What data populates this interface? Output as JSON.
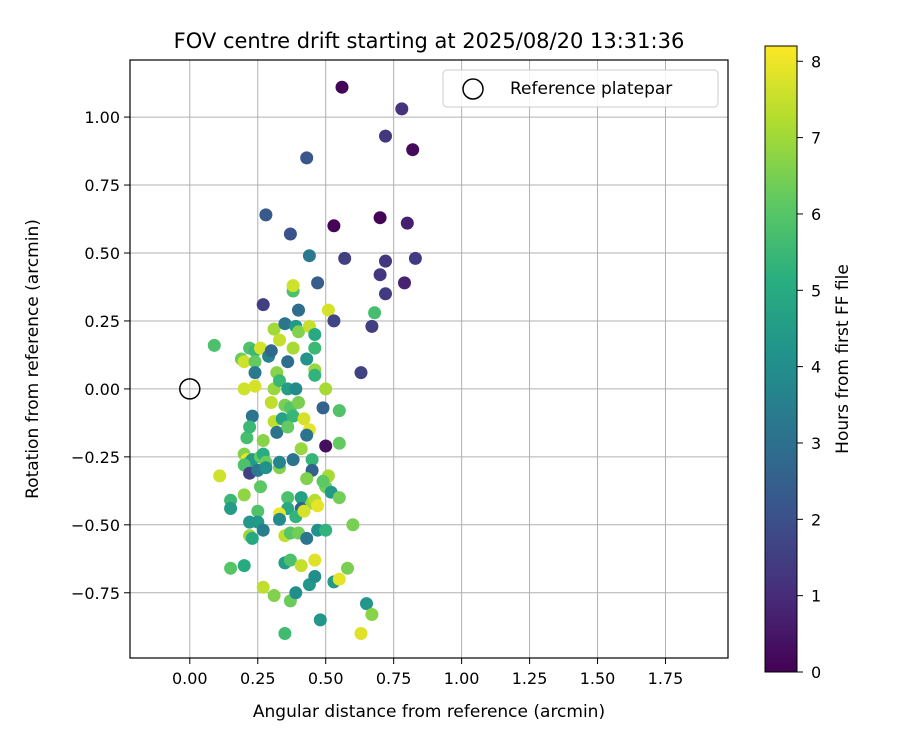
{
  "chart_data": {
    "type": "scatter",
    "title": "FOV centre drift starting at 2025/08/20 13:31:36",
    "xlabel": "Angular distance from reference (arcmin)",
    "ylabel": "Rotation from reference (arcmin)",
    "xlim": [
      -0.22,
      1.98
    ],
    "ylim": [
      -0.99,
      1.21
    ],
    "xticks": [
      0.0,
      0.25,
      0.5,
      0.75,
      1.0,
      1.25,
      1.5,
      1.75
    ],
    "xtick_labels": [
      "0.00",
      "0.25",
      "0.50",
      "0.75",
      "1.00",
      "1.25",
      "1.50",
      "1.75"
    ],
    "yticks": [
      -0.75,
      -0.5,
      -0.25,
      0.0,
      0.25,
      0.5,
      0.75,
      1.0
    ],
    "ytick_labels": [
      "−0.75",
      "−0.50",
      "−0.25",
      "0.00",
      "0.25",
      "0.50",
      "0.75",
      "1.00"
    ],
    "grid": true,
    "colormap": "viridis",
    "colorbar": {
      "label": "Hours from first FF file",
      "min": 0,
      "max": 8.2,
      "ticks": [
        0,
        1,
        2,
        3,
        4,
        5,
        6,
        7,
        8
      ],
      "tick_labels": [
        "0",
        "1",
        "2",
        "3",
        "4",
        "5",
        "6",
        "7",
        "8"
      ]
    },
    "legend": {
      "placement": "top-right",
      "entries": [
        {
          "label": "Reference platepar",
          "marker": "open-circle",
          "x": 0.0,
          "y": 0.0
        }
      ]
    },
    "series": [
      {
        "points": [
          [
            0.56,
            1.11,
            0.1
          ],
          [
            0.78,
            1.03,
            1.2
          ],
          [
            0.72,
            0.93,
            1.3
          ],
          [
            0.82,
            0.88,
            0.2
          ],
          [
            0.43,
            0.85,
            2.2
          ],
          [
            0.28,
            0.64,
            2.3
          ],
          [
            0.37,
            0.57,
            2.1
          ],
          [
            0.53,
            0.6,
            0.1
          ],
          [
            0.7,
            0.63,
            0.1
          ],
          [
            0.8,
            0.61,
            0.7
          ],
          [
            0.44,
            0.49,
            3.3
          ],
          [
            0.57,
            0.48,
            1.5
          ],
          [
            0.72,
            0.47,
            1.3
          ],
          [
            0.83,
            0.48,
            1.4
          ],
          [
            0.7,
            0.42,
            1.3
          ],
          [
            0.47,
            0.39,
            2.4
          ],
          [
            0.72,
            0.35,
            1.4
          ],
          [
            0.79,
            0.39,
            0.8
          ],
          [
            0.27,
            0.31,
            1.5
          ],
          [
            0.38,
            0.36,
            5.8
          ],
          [
            0.38,
            0.38,
            7.6
          ],
          [
            0.4,
            0.29,
            2.9
          ],
          [
            0.51,
            0.29,
            7.7
          ],
          [
            0.53,
            0.25,
            1.7
          ],
          [
            0.68,
            0.28,
            5.7
          ],
          [
            0.67,
            0.23,
            1.5
          ],
          [
            0.31,
            0.22,
            7.0
          ],
          [
            0.35,
            0.24,
            3.2
          ],
          [
            0.39,
            0.23,
            4.4
          ],
          [
            0.4,
            0.21,
            6.6
          ],
          [
            0.44,
            0.23,
            7.5
          ],
          [
            0.46,
            0.2,
            5.0
          ],
          [
            0.09,
            0.16,
            5.8
          ],
          [
            0.22,
            0.15,
            5.9
          ],
          [
            0.24,
            0.14,
            5.5
          ],
          [
            0.26,
            0.15,
            7.7
          ],
          [
            0.29,
            0.12,
            3.6
          ],
          [
            0.3,
            0.14,
            2.8
          ],
          [
            0.33,
            0.18,
            7.5
          ],
          [
            0.38,
            0.15,
            7.1
          ],
          [
            0.46,
            0.15,
            5.5
          ],
          [
            0.19,
            0.11,
            6.3
          ],
          [
            0.2,
            0.1,
            7.6
          ],
          [
            0.24,
            0.1,
            6.2
          ],
          [
            0.24,
            0.06,
            3.3
          ],
          [
            0.36,
            0.1,
            2.9
          ],
          [
            0.43,
            0.11,
            4.2
          ],
          [
            0.32,
            0.06,
            6.7
          ],
          [
            0.46,
            0.07,
            6.9
          ],
          [
            0.46,
            0.05,
            5.3
          ],
          [
            0.63,
            0.06,
            1.6
          ],
          [
            0.2,
            0.0,
            7.6
          ],
          [
            0.24,
            0.01,
            7.7
          ],
          [
            0.31,
            0.0,
            6.9
          ],
          [
            0.33,
            0.03,
            5.5
          ],
          [
            0.36,
            0.0,
            4.6
          ],
          [
            0.39,
            0.0,
            3.9
          ],
          [
            0.5,
            0.0,
            7.1
          ],
          [
            0.3,
            -0.05,
            7.4
          ],
          [
            0.35,
            -0.06,
            6.5
          ],
          [
            0.37,
            -0.07,
            6.0
          ],
          [
            0.4,
            -0.05,
            6.5
          ],
          [
            0.49,
            -0.07,
            2.6
          ],
          [
            0.55,
            -0.08,
            5.9
          ],
          [
            0.23,
            -0.1,
            3.2
          ],
          [
            0.31,
            -0.12,
            7.4
          ],
          [
            0.34,
            -0.11,
            4.7
          ],
          [
            0.38,
            -0.1,
            5.4
          ],
          [
            0.42,
            -0.11,
            7.7
          ],
          [
            0.44,
            -0.15,
            7.9
          ],
          [
            0.21,
            -0.18,
            5.7
          ],
          [
            0.22,
            -0.14,
            5.5
          ],
          [
            0.32,
            -0.16,
            3.1
          ],
          [
            0.36,
            -0.14,
            6.2
          ],
          [
            0.43,
            -0.17,
            3.1
          ],
          [
            0.5,
            -0.21,
            0.3
          ],
          [
            0.55,
            -0.2,
            6.2
          ],
          [
            0.27,
            -0.19,
            6.7
          ],
          [
            0.41,
            -0.22,
            6.9
          ],
          [
            0.2,
            -0.24,
            6.6
          ],
          [
            0.21,
            -0.26,
            7.9
          ],
          [
            0.22,
            -0.27,
            5.4
          ],
          [
            0.23,
            -0.26,
            4.4
          ],
          [
            0.26,
            -0.25,
            6.2
          ],
          [
            0.27,
            -0.24,
            5.1
          ],
          [
            0.28,
            -0.27,
            6.3
          ],
          [
            0.2,
            -0.28,
            5.8
          ],
          [
            0.22,
            -0.31,
            1.6
          ],
          [
            0.25,
            -0.3,
            3.3
          ],
          [
            0.28,
            -0.29,
            4.1
          ],
          [
            0.33,
            -0.29,
            6.6
          ],
          [
            0.33,
            -0.27,
            3.7
          ],
          [
            0.38,
            -0.26,
            3.1
          ],
          [
            0.45,
            -0.26,
            5.4
          ],
          [
            0.45,
            -0.3,
            2.6
          ],
          [
            0.5,
            -0.36,
            6.4
          ],
          [
            0.51,
            -0.32,
            7.1
          ],
          [
            0.11,
            -0.32,
            7.6
          ],
          [
            0.43,
            -0.33,
            6.6
          ],
          [
            0.49,
            -0.34,
            6.1
          ],
          [
            0.26,
            -0.36,
            6.1
          ],
          [
            0.2,
            -0.39,
            6.8
          ],
          [
            0.36,
            -0.4,
            5.8
          ],
          [
            0.36,
            -0.44,
            4.9
          ],
          [
            0.41,
            -0.4,
            4.7
          ],
          [
            0.41,
            -0.44,
            2.6
          ],
          [
            0.45,
            -0.42,
            6.9
          ],
          [
            0.46,
            -0.41,
            7.3
          ],
          [
            0.47,
            -0.43,
            7.9
          ],
          [
            0.52,
            -0.38,
            4.4
          ],
          [
            0.55,
            -0.4,
            6.4
          ],
          [
            0.15,
            -0.41,
            5.5
          ],
          [
            0.15,
            -0.44,
            4.5
          ],
          [
            0.25,
            -0.45,
            5.9
          ],
          [
            0.25,
            -0.49,
            4.4
          ],
          [
            0.33,
            -0.46,
            8.0
          ],
          [
            0.33,
            -0.48,
            3.9
          ],
          [
            0.39,
            -0.47,
            5.3
          ],
          [
            0.42,
            -0.45,
            7.7
          ],
          [
            0.22,
            -0.49,
            4.3
          ],
          [
            0.27,
            -0.52,
            3.5
          ],
          [
            0.22,
            -0.54,
            6.9
          ],
          [
            0.23,
            -0.55,
            4.9
          ],
          [
            0.35,
            -0.54,
            7.4
          ],
          [
            0.37,
            -0.53,
            6.0
          ],
          [
            0.4,
            -0.53,
            6.4
          ],
          [
            0.43,
            -0.55,
            3.2
          ],
          [
            0.47,
            -0.52,
            4.1
          ],
          [
            0.5,
            -0.52,
            5.3
          ],
          [
            0.6,
            -0.5,
            6.5
          ],
          [
            0.58,
            -0.66,
            6.5
          ],
          [
            0.15,
            -0.66,
            6.0
          ],
          [
            0.2,
            -0.65,
            5.0
          ],
          [
            0.35,
            -0.64,
            4.5
          ],
          [
            0.37,
            -0.63,
            5.8
          ],
          [
            0.41,
            -0.65,
            7.5
          ],
          [
            0.46,
            -0.63,
            7.8
          ],
          [
            0.44,
            -0.72,
            4.3
          ],
          [
            0.46,
            -0.69,
            4.0
          ],
          [
            0.53,
            -0.71,
            4.4
          ],
          [
            0.55,
            -0.7,
            7.9
          ],
          [
            0.27,
            -0.73,
            7.4
          ],
          [
            0.31,
            -0.76,
            6.6
          ],
          [
            0.37,
            -0.78,
            6.3
          ],
          [
            0.39,
            -0.75,
            4.0
          ],
          [
            0.65,
            -0.79,
            4.3
          ],
          [
            0.67,
            -0.83,
            6.7
          ],
          [
            0.48,
            -0.85,
            4.3
          ],
          [
            0.35,
            -0.9,
            5.6
          ],
          [
            0.63,
            -0.9,
            7.8
          ]
        ]
      }
    ]
  }
}
